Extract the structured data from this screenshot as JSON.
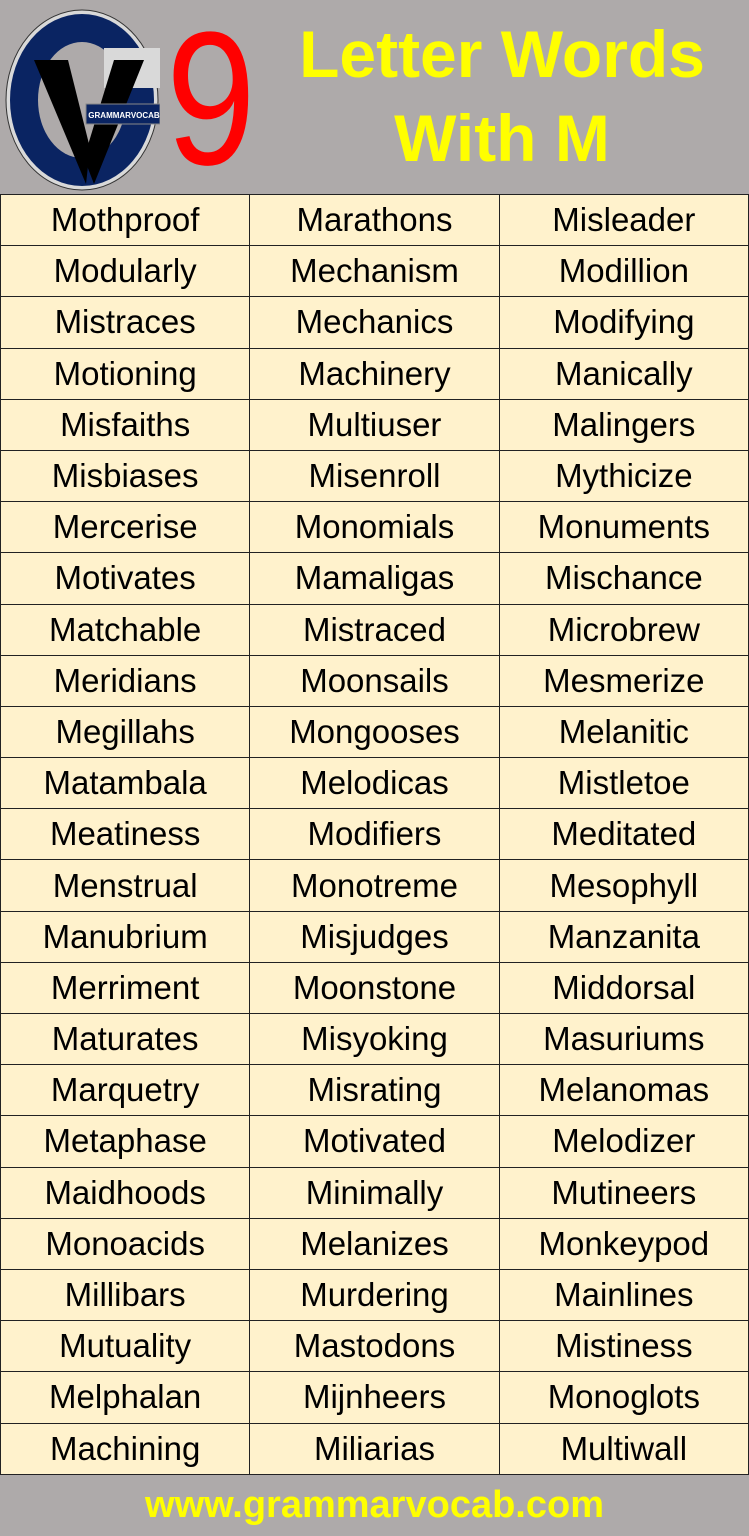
{
  "header": {
    "logo_text": "GRAMMARVOCAB",
    "number": "9",
    "title_line1": "Letter Words",
    "title_line2": "With M"
  },
  "colors": {
    "background": "#aeaaaa",
    "title": "#ffff00",
    "number": "#ff0000",
    "cell": "#fff2cc",
    "logo_blue": "#0a2462"
  },
  "words": [
    [
      "Mothproof",
      "Marathons",
      "Misleader"
    ],
    [
      "Modularly",
      "Mechanism",
      "Modillion"
    ],
    [
      "Mistraces",
      "Mechanics",
      "Modifying"
    ],
    [
      "Motioning",
      "Machinery",
      "Manically"
    ],
    [
      "Misfaiths",
      "Multiuser",
      "Malingers"
    ],
    [
      "Misbiases",
      "Misenroll",
      "Mythicize"
    ],
    [
      "Mercerise",
      "Monomials",
      "Monuments"
    ],
    [
      "Motivates",
      "Mamaligas",
      "Mischance"
    ],
    [
      "Matchable",
      "Mistraced",
      "Microbrew"
    ],
    [
      "Meridians",
      "Moonsails",
      "Mesmerize"
    ],
    [
      "Megillahs",
      "Mongooses",
      "Melanitic"
    ],
    [
      "Matambala",
      "Melodicas",
      "Mistletoe"
    ],
    [
      "Meatiness",
      "Modifiers",
      "Meditated"
    ],
    [
      "Menstrual",
      "Monotreme",
      "Mesophyll"
    ],
    [
      "Manubrium",
      "Misjudges",
      "Manzanita"
    ],
    [
      "Merriment",
      "Moonstone",
      "Middorsal"
    ],
    [
      "Maturates",
      "Misyoking",
      "Masuriums"
    ],
    [
      "Marquetry",
      "Misrating",
      "Melanomas"
    ],
    [
      "Metaphase",
      "Motivated",
      "Melodizer"
    ],
    [
      "Maidhoods",
      "Minimally",
      "Mutineers"
    ],
    [
      "Monoacids",
      "Melanizes",
      "Monkeypod"
    ],
    [
      "Millibars",
      "Murdering",
      "Mainlines"
    ],
    [
      "Mutuality",
      "Mastodons",
      "Mistiness"
    ],
    [
      "Melphalan",
      "Mijnheers",
      "Monoglots"
    ],
    [
      "Machining",
      "Miliarias",
      "Multiwall"
    ]
  ],
  "footer": {
    "website": "www.grammarvocab.com"
  }
}
